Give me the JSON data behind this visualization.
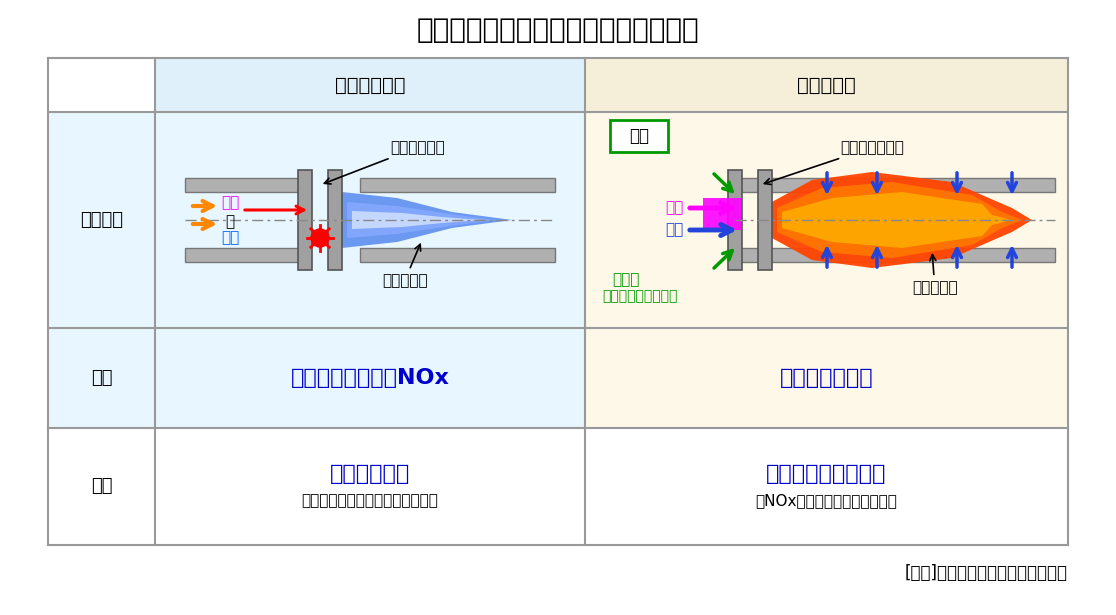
{
  "title": "図表　拡散燃焼方式と予混合燃焼方式",
  "title_fontsize": 20,
  "bg_color": "#ffffff",
  "table_bg_left": "#e8f6ff",
  "table_bg_right": "#fdf8e8",
  "table_header_bg_left": "#dff0fa",
  "table_header_bg_right": "#f5eed8",
  "col_header_text_left": "予混合燃焼器",
  "col_header_text_right": "拡散燃焼器",
  "row_labels": [
    "燃焼方式",
    "長所",
    "短所"
  ],
  "advantage_left": "希薄燃焼による低NOx",
  "advantage_right": "逆火リスクなし",
  "disadvantage_left_main": "逆火リスク大",
  "disadvantage_left_sub": "（水素リッチ燃料の高燃焼速度）",
  "disadvantage_right_main": "プラント効率の低下",
  "disadvantage_right_sub": "（NOx低減用の希釈剤の使用）",
  "caption": "[出典]　三菱日立パワーシステムズ",
  "text_blue": "#0000cc",
  "text_black": "#000000",
  "text_orange": "#ff6600",
  "text_cyan": "#00aaee",
  "text_magenta": "#ff00ff",
  "text_green": "#009900",
  "grid_color": "#999999",
  "shitsusen_box_color": "#009900",
  "left_label_nenryo": "燃料",
  "left_label_plus": "＋",
  "left_label_kuki": "空気",
  "left_label_gyokka": "逆火リスク大",
  "left_label_low_temp": "低温度領域",
  "right_label_nenryo": "燃料",
  "right_label_kuki": "空気",
  "right_label_kishakuzai": "希釈剤",
  "right_label_kishakuzai_sub": "（水，蒸気，窒素）",
  "right_label_gyokka": "逆火リスクなし",
  "right_label_high_temp": "高温度領域",
  "right_label_shitsu": "湿式"
}
